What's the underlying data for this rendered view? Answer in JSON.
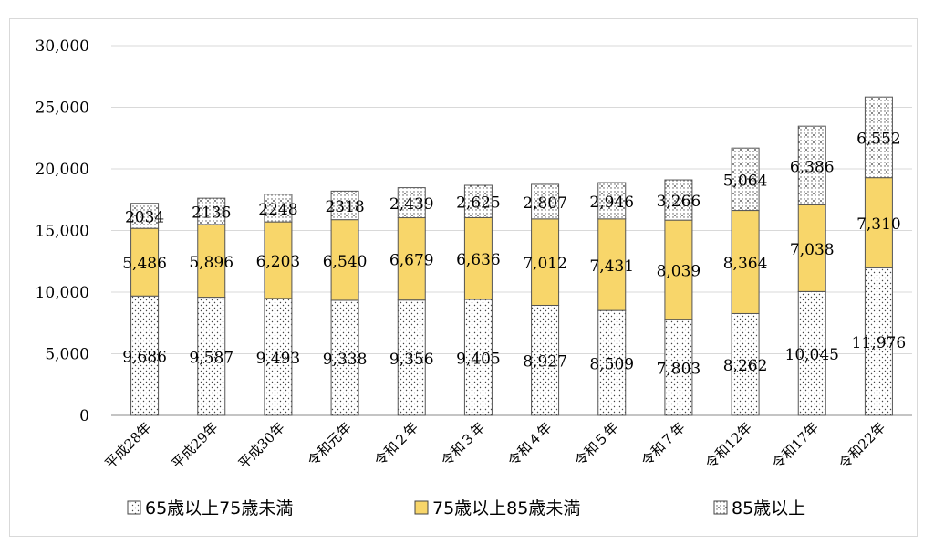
{
  "chart_data": {
    "type": "bar",
    "stacked": true,
    "title": "",
    "xlabel": "",
    "ylabel": "",
    "ylim": [
      0,
      30000
    ],
    "yticks": [
      "0",
      "5,000",
      "10,000",
      "15,000",
      "20,000",
      "25,000",
      "30,000"
    ],
    "grid": true,
    "legend_position": "bottom",
    "categories": [
      "平成28年",
      "平成29年",
      "平成30年",
      "令和元年",
      "令和２年",
      "令和３年",
      "令和４年",
      "令和５年",
      "令和７年",
      "令和12年",
      "令和17年",
      "令和22年"
    ],
    "series": [
      {
        "name": "65歳以上75歳未満",
        "pattern": "dots",
        "color": "#ffffff",
        "values": [
          9686,
          9587,
          9493,
          9338,
          9356,
          9405,
          8927,
          8509,
          7803,
          8262,
          10045,
          11976
        ],
        "labels": [
          "9,686",
          "9,587",
          "9,493",
          "9,338",
          "9,356",
          "9,405",
          "8,927",
          "8,509",
          "7,803",
          "8,262",
          "10,045",
          "11,976"
        ]
      },
      {
        "name": "75歳以上85歳未満",
        "pattern": "solid",
        "color": "#f8d66a",
        "values": [
          5486,
          5896,
          6203,
          6540,
          6679,
          6636,
          7012,
          7431,
          8039,
          8364,
          7038,
          7310
        ],
        "labels": [
          "5,486",
          "5,896",
          "6,203",
          "6,540",
          "6,679",
          "6,636",
          "7,012",
          "7,431",
          "8,039",
          "8,364",
          "7,038",
          "7,310"
        ]
      },
      {
        "name": "85歳以上",
        "pattern": "grid-dots",
        "color": "#ffffff",
        "values": [
          2034,
          2136,
          2248,
          2318,
          2439,
          2625,
          2807,
          2946,
          3266,
          5064,
          6386,
          6552
        ],
        "labels": [
          "2034",
          "2136",
          "2248",
          "2318",
          "2,439",
          "2,625",
          "2,807",
          "2,946",
          "3,266",
          "5,064",
          "6,386",
          "6,552"
        ]
      }
    ]
  }
}
